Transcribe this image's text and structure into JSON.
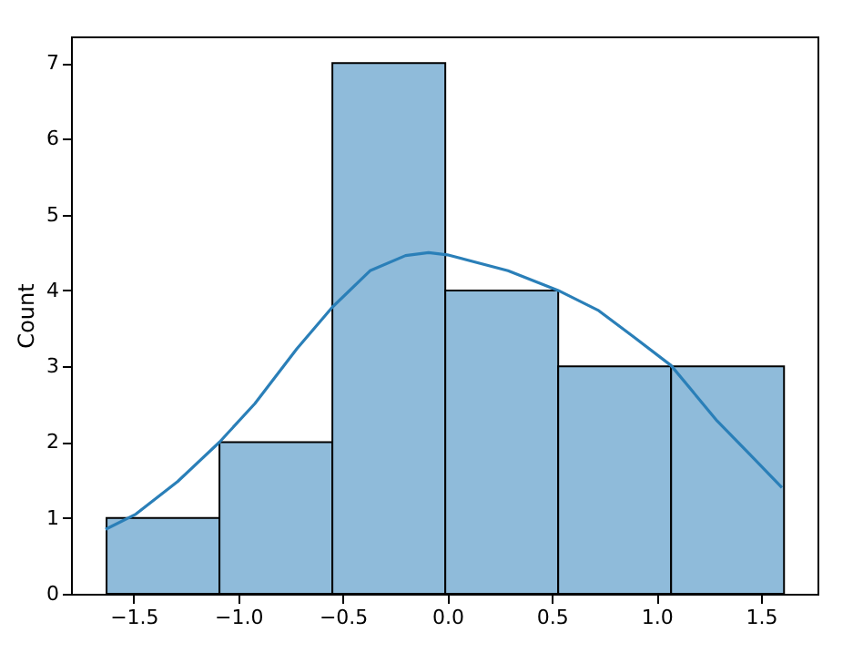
{
  "chart_data": {
    "type": "histogram",
    "ylabel": "Count",
    "bins": [
      -1.63,
      -1.09,
      -0.55,
      -0.01,
      0.53,
      1.07,
      1.61
    ],
    "values": [
      1,
      2,
      7,
      4,
      3,
      3
    ],
    "color": "#8fbbda",
    "series": [
      {
        "type": "line",
        "color": "#2a7fb8",
        "x": [
          -1.635,
          -1.49,
          -1.29,
          -1.09,
          -0.92,
          -0.72,
          -0.55,
          -0.37,
          -0.2,
          -0.09,
          0.0,
          0.29,
          0.53,
          0.72,
          0.89,
          1.07,
          1.29,
          1.46,
          1.6
        ],
        "values": [
          0.85,
          1.05,
          1.48,
          2.0,
          2.51,
          3.23,
          3.78,
          4.26,
          4.46,
          4.5,
          4.47,
          4.26,
          4.0,
          3.74,
          3.39,
          3.01,
          2.28,
          1.8,
          1.4
        ]
      }
    ],
    "xlim": [
      -1.8,
      1.77
    ],
    "xticks": [
      {
        "value": -1.5,
        "label": "−1.5"
      },
      {
        "value": -1.0,
        "label": "−1.0"
      },
      {
        "value": -0.5,
        "label": "−0.5"
      },
      {
        "value": 0,
        "label": "0.0"
      },
      {
        "value": 0.5,
        "label": "0.5"
      },
      {
        "value": 1.0,
        "label": "1.0"
      },
      {
        "value": 1.5,
        "label": "1.5"
      }
    ],
    "ylim": [
      0,
      7.35
    ],
    "yticks": [
      0,
      1,
      2,
      3,
      4,
      5,
      6,
      7
    ],
    "grid": false
  }
}
